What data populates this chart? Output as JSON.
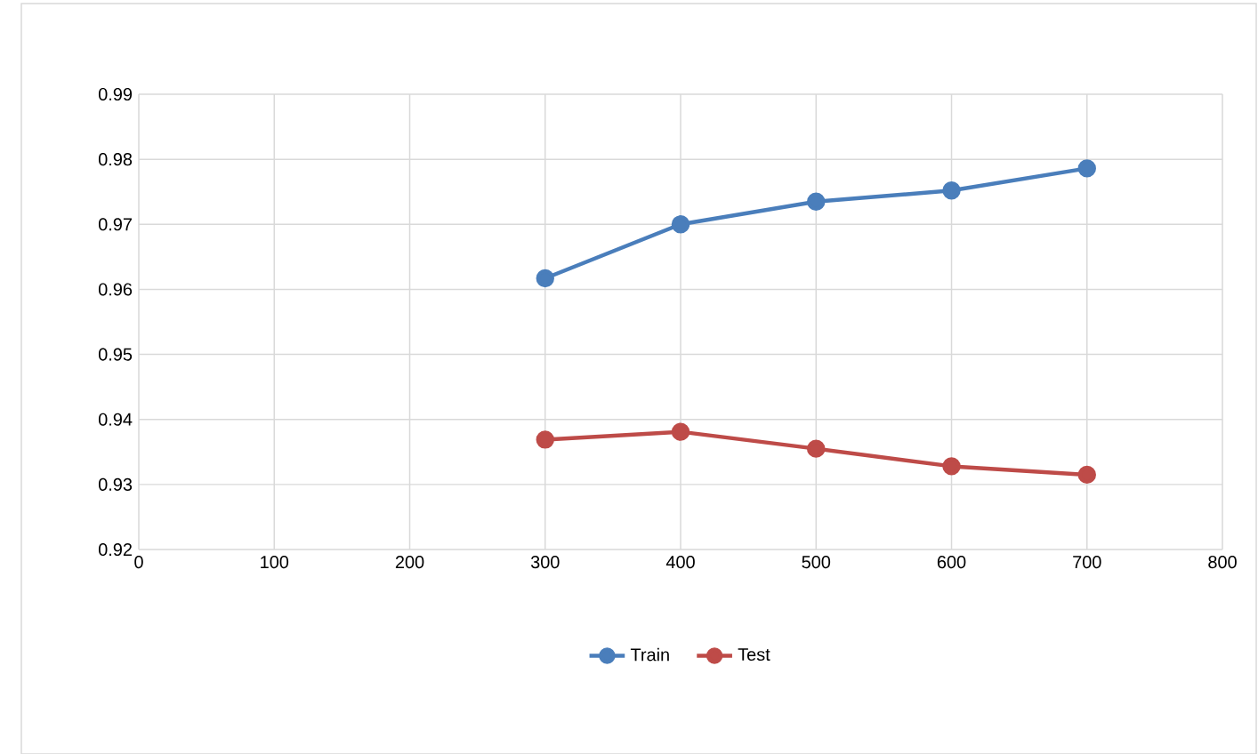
{
  "chart_data": {
    "type": "line",
    "x": [
      300,
      400,
      500,
      600,
      700
    ],
    "series": [
      {
        "name": "Train",
        "color": "#4a7ebb",
        "values": [
          0.9617,
          0.97,
          0.9735,
          0.9752,
          0.9786
        ]
      },
      {
        "name": "Test",
        "color": "#be4b48",
        "values": [
          0.9369,
          0.9381,
          0.9355,
          0.9328,
          0.9315
        ]
      }
    ],
    "xlim": [
      0,
      800
    ],
    "xticks": [
      0,
      100,
      200,
      300,
      400,
      500,
      600,
      700,
      800
    ],
    "ylim": [
      0.92,
      0.99
    ],
    "yticks": [
      0.92,
      0.93,
      0.94,
      0.95,
      0.96,
      0.97,
      0.98,
      0.99
    ],
    "grid": true,
    "legend": "bottom",
    "marker": "circle",
    "line_style": "solid"
  }
}
